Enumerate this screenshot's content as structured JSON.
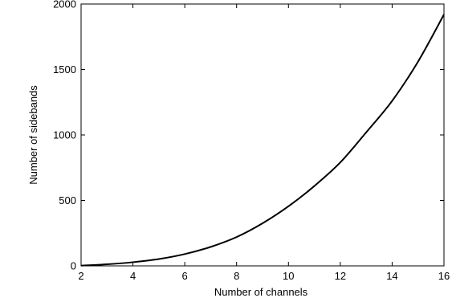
{
  "chart_data": {
    "type": "line",
    "title": "",
    "xlabel": "Number of channels",
    "ylabel": "Number of sidebands",
    "xlim": [
      2,
      16
    ],
    "ylim": [
      0,
      2000
    ],
    "xticks": [
      2,
      4,
      6,
      8,
      10,
      12,
      14,
      16
    ],
    "yticks": [
      0,
      500,
      1000,
      1500,
      2000
    ],
    "grid": false,
    "series": [
      {
        "x": [
          2,
          3,
          4,
          5,
          6,
          7,
          8,
          9,
          10,
          11,
          12,
          13,
          14,
          15,
          16
        ],
        "y": [
          2,
          12,
          28,
          52,
          90,
          145,
          220,
          325,
          455,
          610,
          790,
          1020,
          1260,
          1560,
          1920
        ]
      }
    ]
  },
  "colors": {
    "line": "#000000",
    "axes": "#000000",
    "plot_background": "#ffffff",
    "figure_background": "#ffffff"
  }
}
